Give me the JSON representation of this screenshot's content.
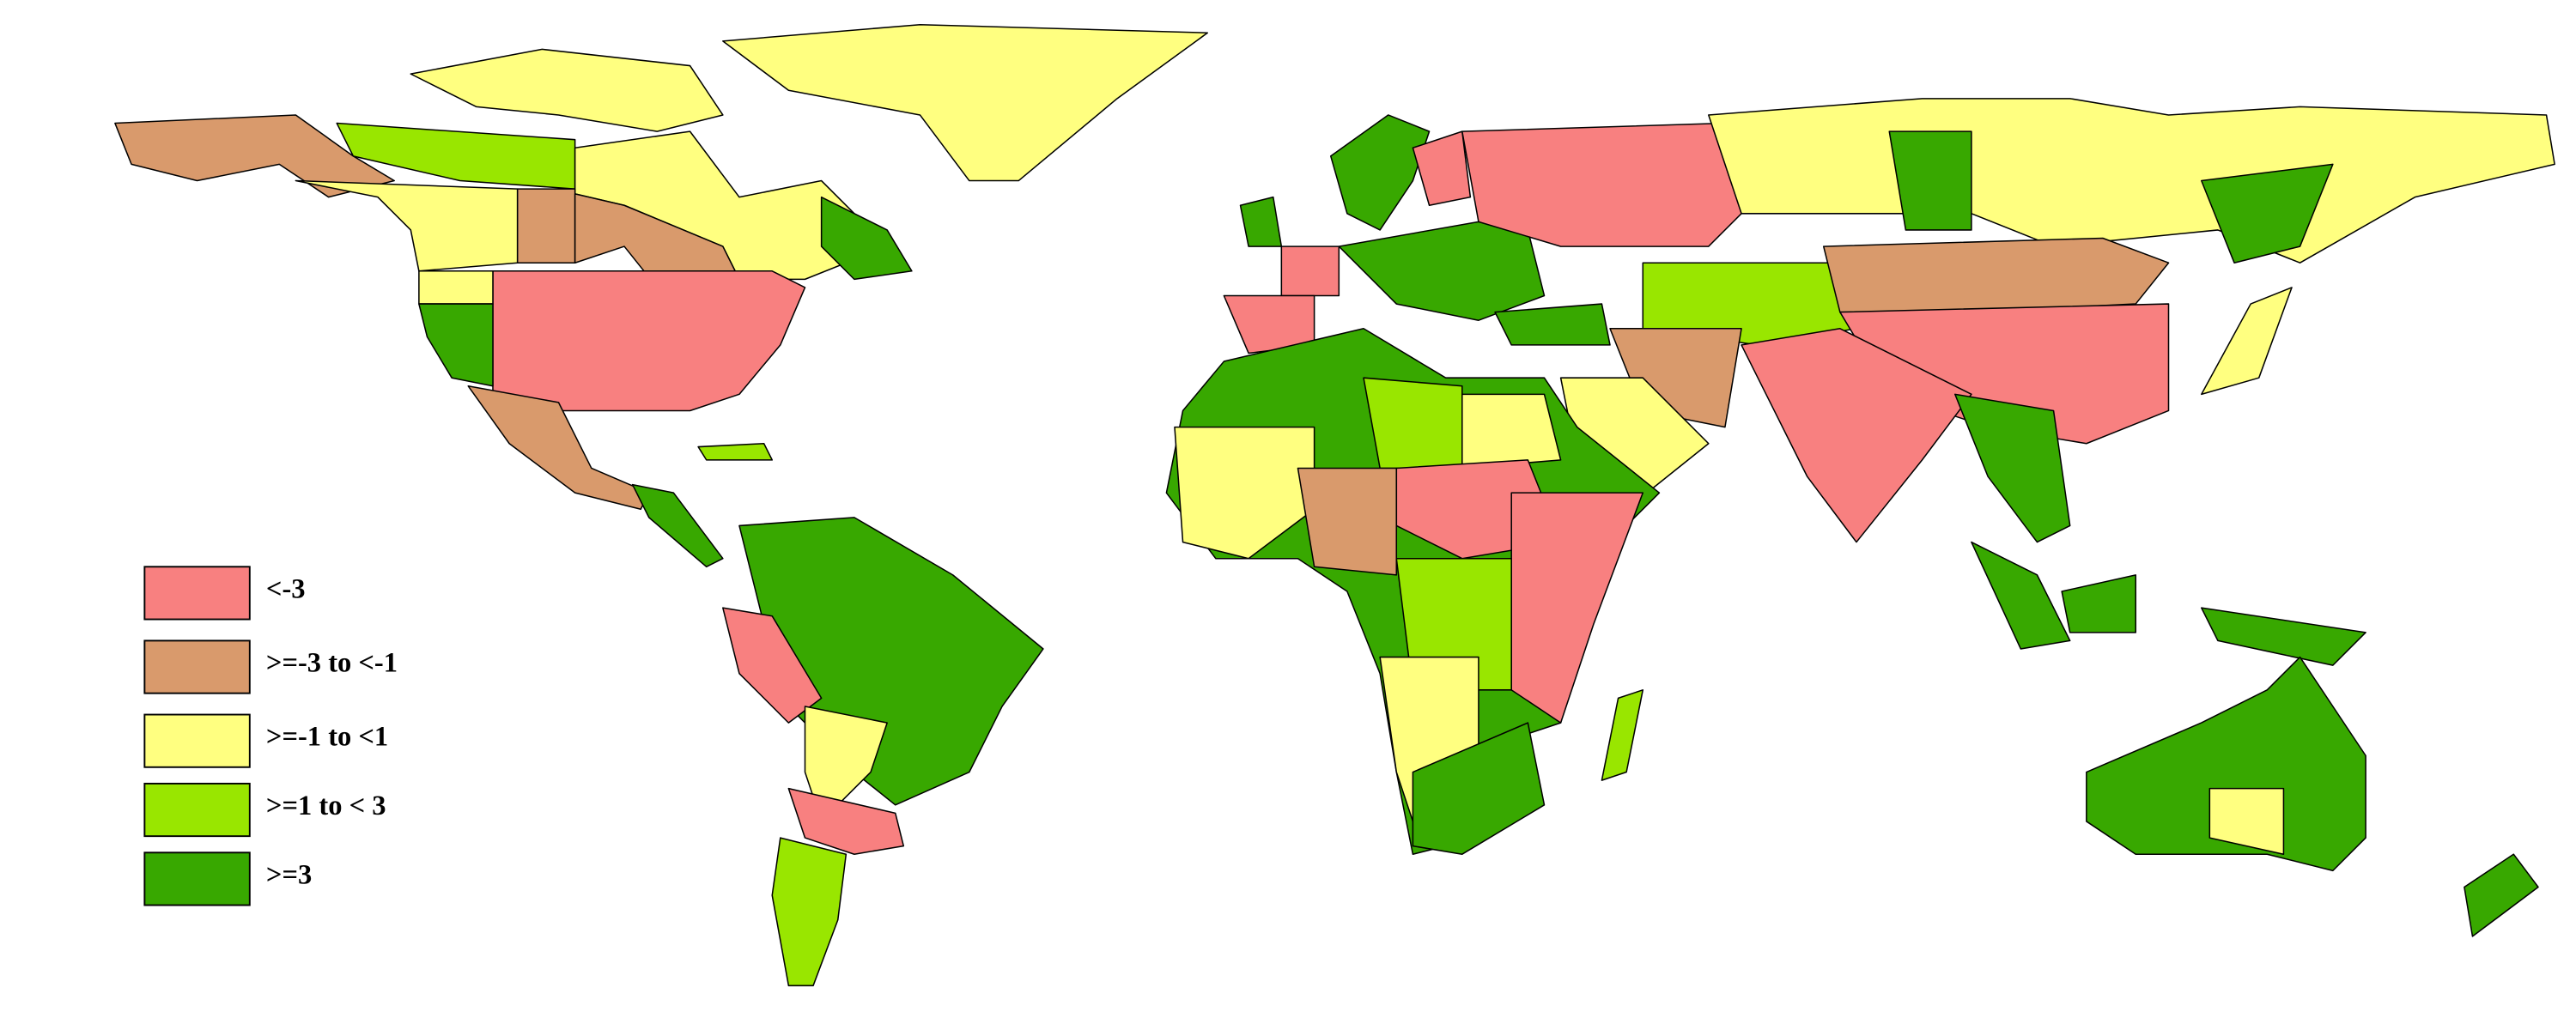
{
  "legend": {
    "items": [
      {
        "label": "<-3",
        "color": "#f88080"
      },
      {
        "label": ">=-3 to <-1",
        "color": "#d99a6c"
      },
      {
        "label": ">=-1 to <1",
        "color": "#ffff80"
      },
      {
        "label": ">=1 to < 3",
        "color": "#99e600"
      },
      {
        "label": ">=3",
        "color": "#38a800"
      }
    ]
  }
}
